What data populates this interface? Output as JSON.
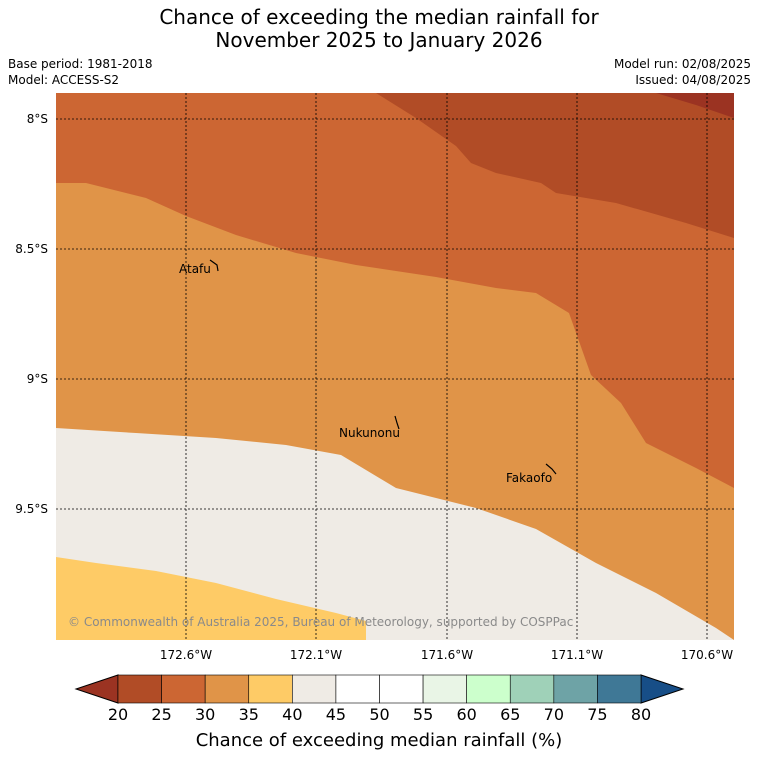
{
  "header": {
    "title_line1": "Chance of exceeding the median rainfall for",
    "title_line2": "November 2025 to January 2026",
    "base_period": "Base period: 1981-2018",
    "model": "Model: ACCESS-S2",
    "model_run": "Model run: 02/08/2025",
    "issued": "Issued: 04/08/2025"
  },
  "map": {
    "lat_labels": [
      "8°S",
      "8.5°S",
      "9°S",
      "9.5°S"
    ],
    "lon_labels": [
      "172.6°W",
      "172.1°W",
      "171.6°W",
      "171.1°W",
      "170.6°W"
    ],
    "places": [
      {
        "name": "Atafu"
      },
      {
        "name": "Nukunonu"
      },
      {
        "name": "Fakaofo"
      }
    ],
    "copyright": "© Commonwealth of Australia 2025, Bureau of Meteorology, supported by COSPPac",
    "band_colors": {
      "20-25": "#b14c26",
      "25-30": "#cc6633",
      "30-35": "#e09448",
      "35-40": "#fecb66",
      "40-45": "#efebe5",
      "below-20": "#9b3322"
    }
  },
  "colorbar": {
    "ticks": [
      "20",
      "25",
      "30",
      "35",
      "40",
      "45",
      "50",
      "55",
      "60",
      "65",
      "70",
      "75",
      "80"
    ],
    "colors": [
      "#b14c26",
      "#cc6633",
      "#e09448",
      "#fecb66",
      "#efebe5",
      "#ffffff",
      "#ffffff",
      "#e9f5e6",
      "#ccffcc",
      "#9fd1b8",
      "#6ea3a6",
      "#3f7896"
    ],
    "low_extend_color": "#9b3322",
    "high_extend_color": "#174e87",
    "label": "Chance of exceeding median rainfall (%)"
  }
}
